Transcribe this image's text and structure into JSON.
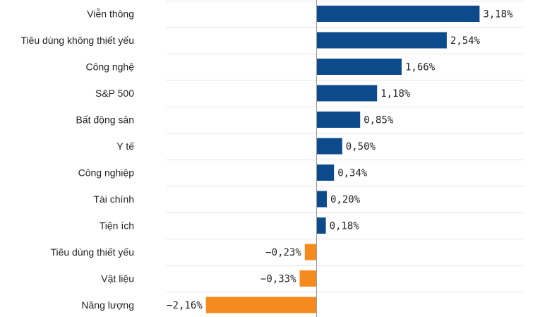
{
  "chart_data": {
    "type": "bar",
    "orientation": "horizontal",
    "categories": [
      "Viễn thông",
      "Tiêu dùng không thiết yếu",
      "Công nghệ",
      "S&P 500",
      "Bất động sản",
      "Y tế",
      "Công nghiệp",
      "Tài chính",
      "Tiện ích",
      "Tiêu dùng thiết yếu",
      "Vật liệu",
      "Năng lượng"
    ],
    "values": [
      3.18,
      2.54,
      1.66,
      1.18,
      0.85,
      0.5,
      0.34,
      0.2,
      0.18,
      -0.23,
      -0.33,
      -2.16
    ],
    "value_labels": [
      "3,18%",
      "2,54%",
      "1,66%",
      "1,18%",
      "0,85%",
      "0,50%",
      "0,34%",
      "0,20%",
      "0,18%",
      "−0,23%",
      "−0,33%",
      "−2,16%"
    ],
    "colors": {
      "positive": "#0d4a8c",
      "negative": "#f58b1f"
    },
    "xlim": [
      -2.16,
      3.18
    ],
    "grid": "horizontal",
    "legend": "none"
  }
}
